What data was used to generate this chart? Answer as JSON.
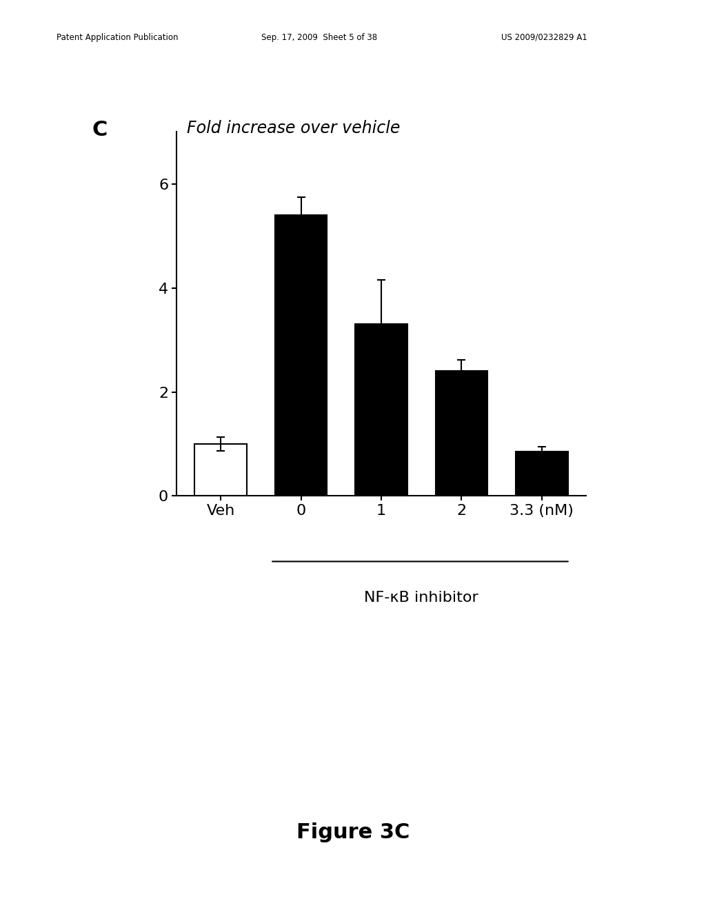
{
  "header_left": "Patent Application Publication",
  "header_mid": "Sep. 17, 2009  Sheet 5 of 38",
  "header_right": "US 2009/0232829 A1",
  "panel_label": "C",
  "chart_title": "Fold increase over vehicle",
  "categories": [
    "Veh",
    "0",
    "1",
    "2",
    "3.3 (nM)"
  ],
  "values": [
    1.0,
    5.4,
    3.3,
    2.4,
    0.85
  ],
  "errors": [
    0.13,
    0.35,
    0.85,
    0.22,
    0.1
  ],
  "bar_colors": [
    "white",
    "black",
    "black",
    "black",
    "black"
  ],
  "bar_edgecolors": [
    "black",
    "black",
    "black",
    "black",
    "black"
  ],
  "xlabel": "NF-κB inhibitor",
  "ylim": [
    0,
    7.0
  ],
  "yticks": [
    0,
    2,
    4,
    6
  ],
  "figure_caption": "Figure 3C",
  "background_color": "white"
}
